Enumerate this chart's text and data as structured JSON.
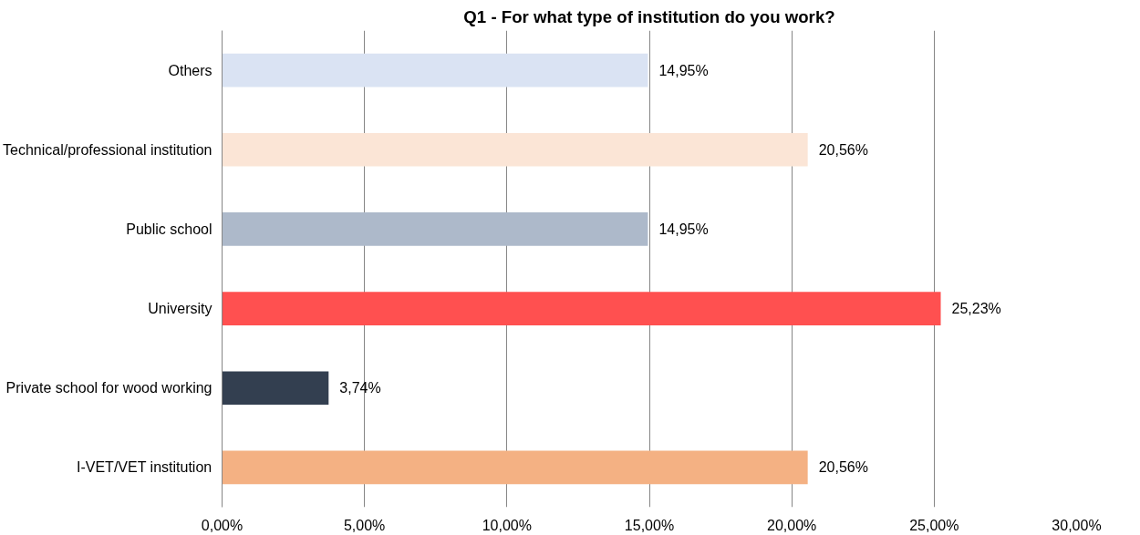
{
  "chart_data": {
    "type": "bar",
    "orientation": "horizontal",
    "title": "Q1 - For what type of institution do you work?",
    "categories": [
      "Others",
      "Technical/professional institution",
      "Public school",
      "University",
      "Private school for wood working",
      "I-VET/VET institution"
    ],
    "values": [
      14.95,
      20.56,
      14.95,
      25.23,
      3.74,
      20.56
    ],
    "colors": [
      "#dae3f3",
      "#fbe5d6",
      "#adb9ca",
      "#ff5050",
      "#333f50",
      "#f4b183"
    ],
    "value_labels": [
      "14,95%",
      "20,56%",
      "14,95%",
      "25,23%",
      "3,74%",
      "20,56%"
    ],
    "xlim": [
      0,
      30
    ],
    "xticks": [
      {
        "value": 0,
        "label": "0,00%"
      },
      {
        "value": 5,
        "label": "5,00%"
      },
      {
        "value": 10,
        "label": "10,00%"
      },
      {
        "value": 15,
        "label": "15,00%"
      },
      {
        "value": 20,
        "label": "20,00%"
      },
      {
        "value": 25,
        "label": "25,00%"
      },
      {
        "value": 30,
        "label": "30,00%"
      }
    ],
    "grid": "x"
  }
}
